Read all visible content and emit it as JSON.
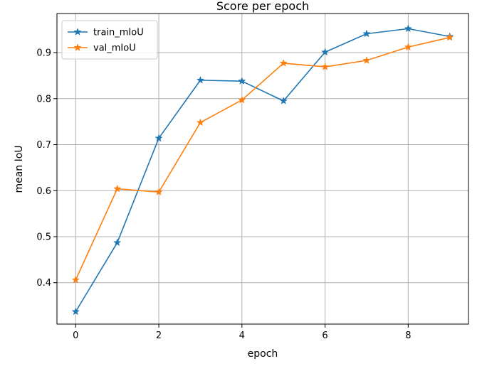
{
  "chart_data": {
    "type": "line",
    "title": "Score per epoch",
    "xlabel": "epoch",
    "ylabel": "mean IoU",
    "xlim": [
      -0.45,
      9.45
    ],
    "ylim": [
      0.31,
      0.985
    ],
    "xticks": [
      0,
      2,
      4,
      6,
      8
    ],
    "yticks": [
      0.4,
      0.5,
      0.6,
      0.7,
      0.8,
      0.9
    ],
    "xtick_labels": [
      "0",
      "2",
      "4",
      "6",
      "8"
    ],
    "ytick_labels": [
      "0.4",
      "0.5",
      "0.6",
      "0.7",
      "0.8",
      "0.9"
    ],
    "grid": true,
    "legend_position": "top-left",
    "x": [
      0,
      1,
      2,
      3,
      4,
      5,
      6,
      7,
      8,
      9
    ],
    "series": [
      {
        "name": "train_mIoU",
        "color": "#1f77b4",
        "marker": "star",
        "values": [
          0.337,
          0.487,
          0.714,
          0.84,
          0.838,
          0.795,
          0.901,
          0.941,
          0.952,
          0.935
        ]
      },
      {
        "name": "val_mIoU",
        "color": "#ff7f0e",
        "marker": "star",
        "values": [
          0.406,
          0.604,
          0.597,
          0.748,
          0.797,
          0.877,
          0.869,
          0.883,
          0.912,
          0.933
        ]
      }
    ]
  }
}
